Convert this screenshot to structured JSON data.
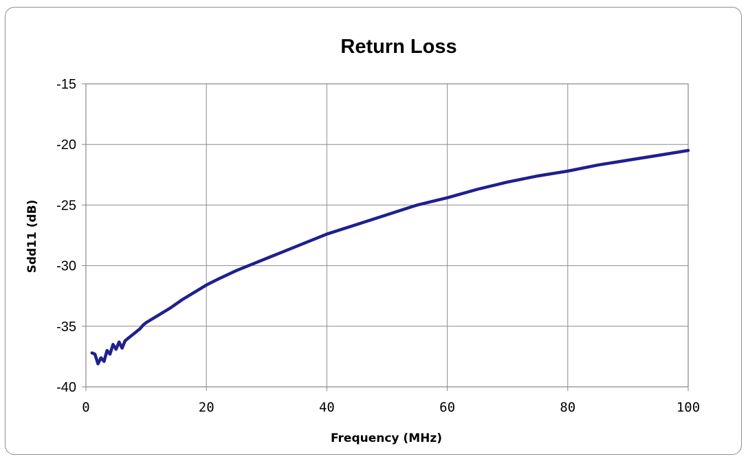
{
  "chart_data": {
    "type": "line",
    "title": "Return Loss",
    "xlabel": "Frequency (MHz)",
    "ylabel": "Sdd11 (dB)",
    "xlim": [
      0,
      100
    ],
    "ylim": [
      -40,
      -15
    ],
    "xticks": [
      0,
      20,
      40,
      60,
      80,
      100
    ],
    "yticks": [
      -15,
      -20,
      -25,
      -30,
      -35,
      -40
    ],
    "xtick_labels": [
      "0",
      "20",
      "40",
      "60",
      "80",
      "100"
    ],
    "ytick_labels": [
      "-15",
      "-20",
      "-25",
      "-30",
      "-35",
      "-40"
    ],
    "grid": true,
    "legend": "none",
    "series": [
      {
        "color": "#1f1f8f",
        "x": [
          1,
          1.5,
          2,
          2.5,
          3,
          3.5,
          4,
          4.5,
          5,
          5.5,
          6,
          6.5,
          7,
          8,
          9,
          9.5,
          10,
          12,
          14,
          16,
          18,
          20,
          22,
          25,
          28,
          30,
          33,
          36,
          40,
          45,
          50,
          55,
          60,
          65,
          70,
          75,
          80,
          85,
          90,
          95,
          100
        ],
        "y": [
          -37.2,
          -37.3,
          -38.1,
          -37.6,
          -37.9,
          -37.0,
          -37.3,
          -36.5,
          -36.9,
          -36.3,
          -36.8,
          -36.2,
          -36.0,
          -35.6,
          -35.2,
          -34.9,
          -34.7,
          -34.1,
          -33.5,
          -32.8,
          -32.2,
          -31.6,
          -31.1,
          -30.4,
          -29.8,
          -29.4,
          -28.8,
          -28.2,
          -27.4,
          -26.6,
          -25.8,
          -25.0,
          -24.4,
          -23.7,
          -23.1,
          -22.6,
          -22.2,
          -21.7,
          -21.3,
          -20.9,
          -20.5
        ]
      }
    ]
  }
}
